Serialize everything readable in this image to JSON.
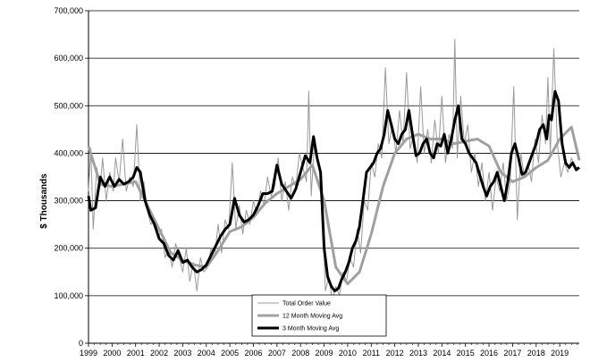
{
  "chart_data": {
    "type": "line",
    "title": "",
    "xlabel": "",
    "ylabel": "$ Thousands",
    "ylim": [
      0,
      700000
    ],
    "yticks": [
      0,
      100000,
      200000,
      300000,
      400000,
      500000,
      600000,
      700000
    ],
    "ytick_labels": [
      "0",
      "100,000",
      "200,000",
      "300,000",
      "400,000",
      "500,000",
      "600,000",
      "700,000"
    ],
    "xlim": [
      1999.0,
      2019.83
    ],
    "xticks": [
      1999,
      2000,
      2001,
      2002,
      2003,
      2004,
      2005,
      2006,
      2007,
      2008,
      2009,
      2010,
      2011,
      2012,
      2013,
      2014,
      2015,
      2016,
      2017,
      2018,
      2019
    ],
    "xtick_labels": [
      "1999",
      "2000",
      "2001",
      "2002",
      "2003",
      "2004",
      "2005",
      "2006",
      "2007",
      "2008",
      "2009",
      "2010",
      "2011",
      "2012",
      "2013",
      "2014",
      "2015",
      "2016",
      "2017",
      "2018",
      "2019"
    ],
    "grid": "horizontal",
    "legend_position": "bottom-center",
    "series": [
      {
        "name": "Total Order Value",
        "color": "#999999",
        "x": [
          1999.0,
          1999.1,
          1999.2,
          1999.35,
          1999.5,
          1999.6,
          1999.75,
          1999.9,
          2000.05,
          2000.15,
          2000.3,
          2000.45,
          2000.6,
          2000.75,
          2000.9,
          2001.05,
          2001.2,
          2001.35,
          2001.5,
          2001.65,
          2001.8,
          2001.95,
          2002.1,
          2002.25,
          2002.4,
          2002.55,
          2002.7,
          2002.85,
          2003.0,
          2003.15,
          2003.3,
          2003.45,
          2003.6,
          2003.75,
          2003.9,
          2004.05,
          2004.2,
          2004.35,
          2004.5,
          2004.65,
          2004.8,
          2004.95,
          2005.1,
          2005.25,
          2005.4,
          2005.55,
          2005.7,
          2005.85,
          2006.0,
          2006.15,
          2006.3,
          2006.45,
          2006.6,
          2006.75,
          2006.9,
          2007.05,
          2007.2,
          2007.35,
          2007.5,
          2007.65,
          2007.8,
          2007.95,
          2008.1,
          2008.25,
          2008.35,
          2008.45,
          2008.6,
          2008.75,
          2008.9,
          2009.05,
          2009.2,
          2009.35,
          2009.5,
          2009.65,
          2009.8,
          2009.95,
          2010.1,
          2010.25,
          2010.4,
          2010.55,
          2010.7,
          2010.85,
          2011.0,
          2011.15,
          2011.3,
          2011.45,
          2011.6,
          2011.75,
          2011.9,
          2012.05,
          2012.2,
          2012.35,
          2012.5,
          2012.65,
          2012.8,
          2012.95,
          2013.1,
          2013.25,
          2013.4,
          2013.55,
          2013.7,
          2013.85,
          2014.0,
          2014.15,
          2014.3,
          2014.45,
          2014.55,
          2014.65,
          2014.8,
          2014.95,
          2015.1,
          2015.25,
          2015.4,
          2015.55,
          2015.7,
          2015.85,
          2016.0,
          2016.15,
          2016.3,
          2016.45,
          2016.6,
          2016.75,
          2016.9,
          2017.05,
          2017.2,
          2017.35,
          2017.5,
          2017.65,
          2017.8,
          2017.95,
          2018.1,
          2018.25,
          2018.4,
          2018.5,
          2018.6,
          2018.75,
          2018.9,
          2019.05,
          2019.2,
          2019.35,
          2019.5,
          2019.65,
          2019.8
        ],
        "values": [
          320000,
          410000,
          240000,
          370000,
          330000,
          390000,
          300000,
          360000,
          320000,
          390000,
          340000,
          430000,
          320000,
          350000,
          330000,
          460000,
          300000,
          340000,
          280000,
          250000,
          260000,
          220000,
          240000,
          180000,
          200000,
          160000,
          210000,
          180000,
          150000,
          200000,
          130000,
          170000,
          110000,
          180000,
          150000,
          160000,
          200000,
          180000,
          250000,
          190000,
          260000,
          240000,
          380000,
          240000,
          290000,
          230000,
          280000,
          250000,
          300000,
          270000,
          320000,
          290000,
          350000,
          310000,
          330000,
          390000,
          300000,
          340000,
          280000,
          350000,
          330000,
          400000,
          370000,
          340000,
          530000,
          310000,
          430000,
          380000,
          350000,
          110000,
          140000,
          90000,
          120000,
          100000,
          150000,
          130000,
          180000,
          160000,
          240000,
          190000,
          300000,
          280000,
          380000,
          350000,
          420000,
          390000,
          580000,
          420000,
          460000,
          400000,
          490000,
          420000,
          570000,
          410000,
          440000,
          380000,
          540000,
          400000,
          450000,
          380000,
          470000,
          400000,
          520000,
          380000,
          440000,
          410000,
          640000,
          390000,
          520000,
          420000,
          460000,
          360000,
          400000,
          330000,
          380000,
          300000,
          360000,
          280000,
          350000,
          320000,
          380000,
          300000,
          340000,
          540000,
          260000,
          400000,
          350000,
          380000,
          340000,
          430000,
          380000,
          480000,
          420000,
          560000,
          400000,
          620000,
          420000,
          350000,
          380000,
          360000,
          390000,
          370000,
          370000
        ]
      },
      {
        "name": "12 Month Moving Avg",
        "color": "#a0a0a0",
        "x": [
          1999.0,
          1999.5,
          2000.0,
          2000.5,
          2001.0,
          2001.5,
          2002.0,
          2002.5,
          2003.0,
          2003.5,
          2004.0,
          2004.5,
          2005.0,
          2005.5,
          2006.0,
          2006.5,
          2007.0,
          2007.5,
          2008.0,
          2008.5,
          2009.0,
          2009.5,
          2010.0,
          2010.5,
          2011.0,
          2011.5,
          2012.0,
          2012.5,
          2013.0,
          2013.5,
          2014.0,
          2014.5,
          2015.0,
          2015.5,
          2016.0,
          2016.5,
          2017.0,
          2017.5,
          2018.0,
          2018.5,
          2019.0,
          2019.5,
          2019.83
        ],
        "values": [
          415000,
          335000,
          330000,
          335000,
          340000,
          290000,
          240000,
          190000,
          175000,
          165000,
          160000,
          195000,
          235000,
          245000,
          265000,
          295000,
          315000,
          330000,
          345000,
          375000,
          300000,
          160000,
          125000,
          150000,
          230000,
          330000,
          400000,
          430000,
          440000,
          430000,
          430000,
          420000,
          425000,
          430000,
          415000,
          360000,
          340000,
          350000,
          370000,
          385000,
          430000,
          455000,
          385000
        ]
      },
      {
        "name": "3 Month Moving Avg",
        "color": "#000000",
        "x": [
          1999.0,
          1999.1,
          1999.3,
          1999.5,
          1999.7,
          1999.9,
          2000.1,
          2000.3,
          2000.5,
          2000.7,
          2000.9,
          2001.05,
          2001.2,
          2001.4,
          2001.6,
          2001.8,
          2002.0,
          2002.2,
          2002.4,
          2002.6,
          2002.8,
          2003.0,
          2003.2,
          2003.4,
          2003.6,
          2003.8,
          2004.0,
          2004.2,
          2004.4,
          2004.6,
          2004.8,
          2005.0,
          2005.2,
          2005.4,
          2005.6,
          2005.8,
          2006.0,
          2006.2,
          2006.4,
          2006.6,
          2006.8,
          2007.0,
          2007.2,
          2007.4,
          2007.6,
          2007.8,
          2008.0,
          2008.2,
          2008.4,
          2008.55,
          2008.7,
          2008.85,
          2009.0,
          2009.15,
          2009.3,
          2009.45,
          2009.6,
          2009.75,
          2009.9,
          2010.05,
          2010.2,
          2010.35,
          2010.5,
          2010.65,
          2010.8,
          2010.95,
          2011.1,
          2011.25,
          2011.4,
          2011.55,
          2011.7,
          2011.85,
          2012.0,
          2012.15,
          2012.3,
          2012.45,
          2012.6,
          2012.75,
          2012.9,
          2013.05,
          2013.2,
          2013.35,
          2013.5,
          2013.65,
          2013.8,
          2013.95,
          2014.1,
          2014.25,
          2014.4,
          2014.55,
          2014.7,
          2014.85,
          2015.0,
          2015.15,
          2015.3,
          2015.45,
          2015.6,
          2015.75,
          2015.9,
          2016.05,
          2016.2,
          2016.35,
          2016.5,
          2016.65,
          2016.8,
          2016.95,
          2017.1,
          2017.25,
          2017.4,
          2017.55,
          2017.7,
          2017.85,
          2018.0,
          2018.15,
          2018.3,
          2018.45,
          2018.55,
          2018.65,
          2018.8,
          2018.95,
          2019.1,
          2019.25,
          2019.4,
          2019.55,
          2019.7,
          2019.83
        ],
        "values": [
          310000,
          280000,
          285000,
          350000,
          330000,
          350000,
          330000,
          345000,
          335000,
          340000,
          350000,
          370000,
          360000,
          300000,
          270000,
          250000,
          220000,
          210000,
          185000,
          175000,
          195000,
          170000,
          175000,
          160000,
          150000,
          155000,
          165000,
          185000,
          205000,
          225000,
          240000,
          250000,
          305000,
          270000,
          255000,
          260000,
          270000,
          290000,
          315000,
          315000,
          320000,
          375000,
          335000,
          320000,
          305000,
          325000,
          360000,
          395000,
          380000,
          435000,
          390000,
          360000,
          200000,
          140000,
          120000,
          110000,
          115000,
          135000,
          150000,
          170000,
          200000,
          215000,
          245000,
          300000,
          360000,
          370000,
          380000,
          400000,
          410000,
          440000,
          490000,
          460000,
          430000,
          420000,
          440000,
          450000,
          490000,
          440000,
          395000,
          400000,
          420000,
          430000,
          400000,
          390000,
          420000,
          415000,
          440000,
          400000,
          430000,
          470000,
          500000,
          430000,
          420000,
          400000,
          390000,
          380000,
          355000,
          330000,
          310000,
          330000,
          340000,
          360000,
          330000,
          300000,
          340000,
          400000,
          420000,
          390000,
          355000,
          360000,
          380000,
          400000,
          420000,
          450000,
          460000,
          430000,
          480000,
          470000,
          530000,
          510000,
          420000,
          380000,
          370000,
          380000,
          365000,
          370000
        ]
      }
    ]
  }
}
